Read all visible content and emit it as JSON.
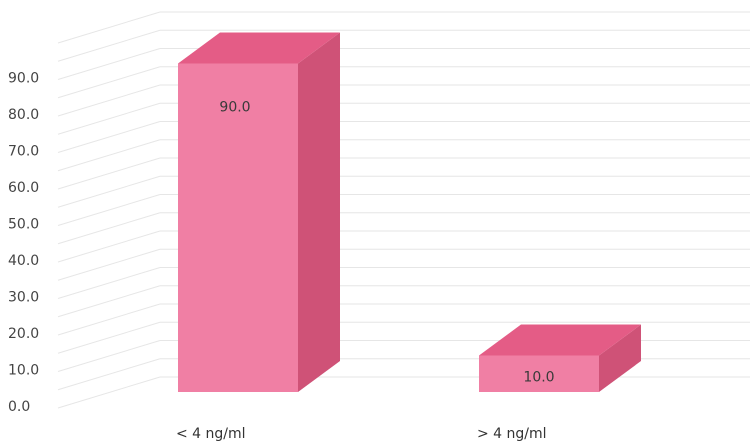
{
  "chart_data": {
    "type": "bar",
    "style": "3d-column",
    "categories": [
      "< 4 ng/ml",
      "> 4 ng/ml"
    ],
    "values": [
      90.0,
      10.0
    ],
    "data_labels": [
      "90.0",
      "10.0"
    ],
    "y_ticks": [
      "0.0",
      "10.0",
      "20.0",
      "30.0",
      "40.0",
      "50.0",
      "60.0",
      "70.0",
      "80.0",
      "90.0"
    ],
    "ylim": [
      0,
      100
    ],
    "grid": true,
    "legend": "none",
    "colors": {
      "front": "#F07FA4",
      "top": "#E45C86",
      "side": "#CF5277",
      "grid": "#e6e6e6"
    }
  }
}
